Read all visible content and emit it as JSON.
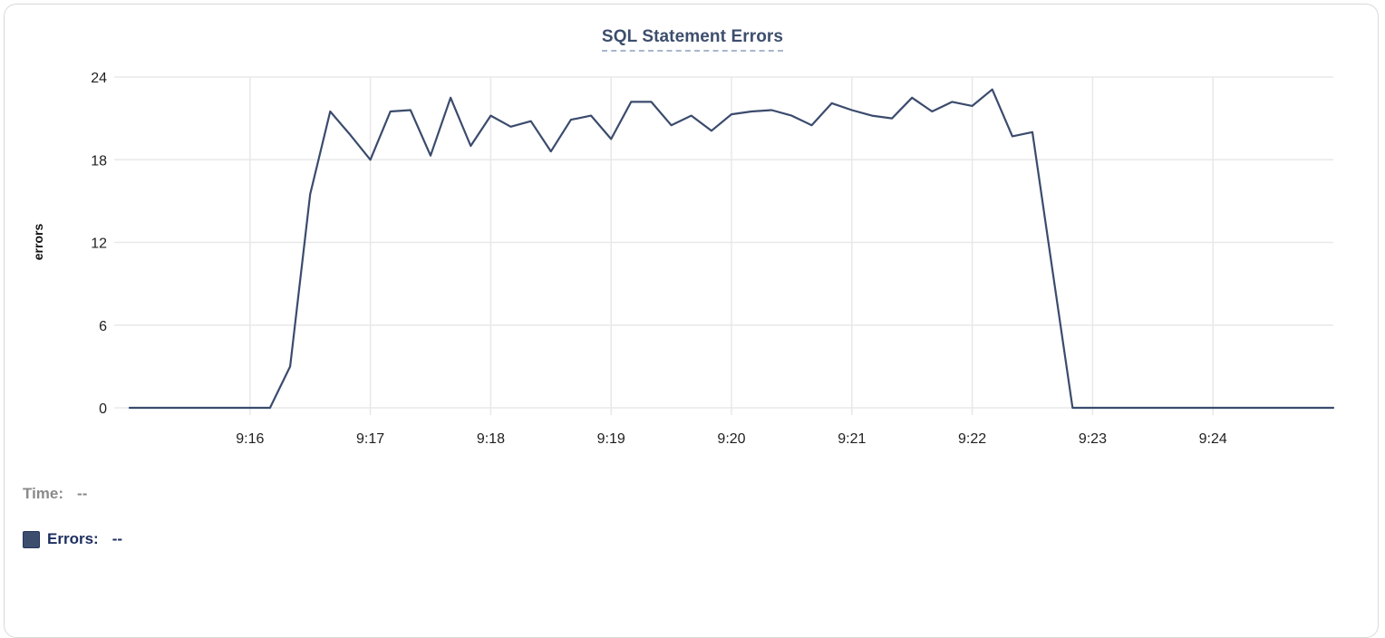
{
  "chart": {
    "title": "SQL Statement Errors",
    "y_axis_label": "errors"
  },
  "readout": {
    "time_label": "Time:",
    "time_value": "--",
    "errors_label": "Errors:",
    "errors_value": "--"
  },
  "colors": {
    "line": "#3b4b6d",
    "legend_swatch": "#3d4d6d",
    "title_text": "#3d4e6e",
    "title_underline": "#a9b6cc",
    "gridline": "#e8e8e8",
    "axis_tick_text": "#1f1f1f",
    "time_readout_text": "#8a8a8a",
    "errors_readout_text": "#1b2e5e",
    "card_border": "#d9d9d9"
  },
  "chart_data": {
    "type": "line",
    "title": "SQL Statement Errors",
    "xlabel": "",
    "ylabel": "errors",
    "ylim": [
      0,
      24
    ],
    "y_ticks": [
      0,
      6,
      12,
      18,
      24
    ],
    "x_tick_labels": [
      "9:16",
      "9:17",
      "9:18",
      "9:19",
      "9:20",
      "9:21",
      "9:22",
      "9:23",
      "9:24"
    ],
    "x_range": [
      "9:15:00",
      "9:25:00"
    ],
    "interval_seconds": 10,
    "grid": true,
    "legend_position": "bottom-left",
    "series": [
      {
        "name": "Errors",
        "color": "#3b4b6d",
        "x": [
          "9:15:00",
          "9:15:10",
          "9:15:20",
          "9:15:30",
          "9:15:40",
          "9:15:50",
          "9:16:00",
          "9:16:10",
          "9:16:20",
          "9:16:30",
          "9:16:40",
          "9:16:50",
          "9:17:00",
          "9:17:10",
          "9:17:20",
          "9:17:30",
          "9:17:40",
          "9:17:50",
          "9:18:00",
          "9:18:10",
          "9:18:20",
          "9:18:30",
          "9:18:40",
          "9:18:50",
          "9:19:00",
          "9:19:10",
          "9:19:20",
          "9:19:30",
          "9:19:40",
          "9:19:50",
          "9:20:00",
          "9:20:10",
          "9:20:20",
          "9:20:30",
          "9:20:40",
          "9:20:50",
          "9:21:00",
          "9:21:10",
          "9:21:20",
          "9:21:30",
          "9:21:40",
          "9:21:50",
          "9:22:00",
          "9:22:10",
          "9:22:20",
          "9:22:30",
          "9:22:40",
          "9:22:50",
          "9:23:00",
          "9:23:10",
          "9:23:20",
          "9:23:30",
          "9:23:40",
          "9:23:50",
          "9:24:00",
          "9:24:10",
          "9:24:20",
          "9:24:30",
          "9:24:40",
          "9:24:50",
          "9:25:00"
        ],
        "values": [
          0,
          0,
          0,
          0,
          0,
          0,
          0,
          0,
          3,
          15.5,
          21.5,
          19.8,
          18,
          21.5,
          21.6,
          18.3,
          22.5,
          19,
          21.2,
          20.4,
          20.8,
          18.6,
          20.9,
          21.2,
          19.5,
          22.2,
          22.2,
          20.5,
          21.2,
          20.1,
          21.3,
          21.5,
          21.6,
          21.2,
          20.5,
          22.1,
          21.6,
          21.2,
          21,
          22.5,
          21.5,
          22.2,
          21.9,
          23.1,
          19.7,
          20,
          10,
          0,
          0,
          0,
          0,
          0,
          0,
          0,
          0,
          0,
          0,
          0,
          0,
          0,
          0
        ]
      }
    ]
  }
}
